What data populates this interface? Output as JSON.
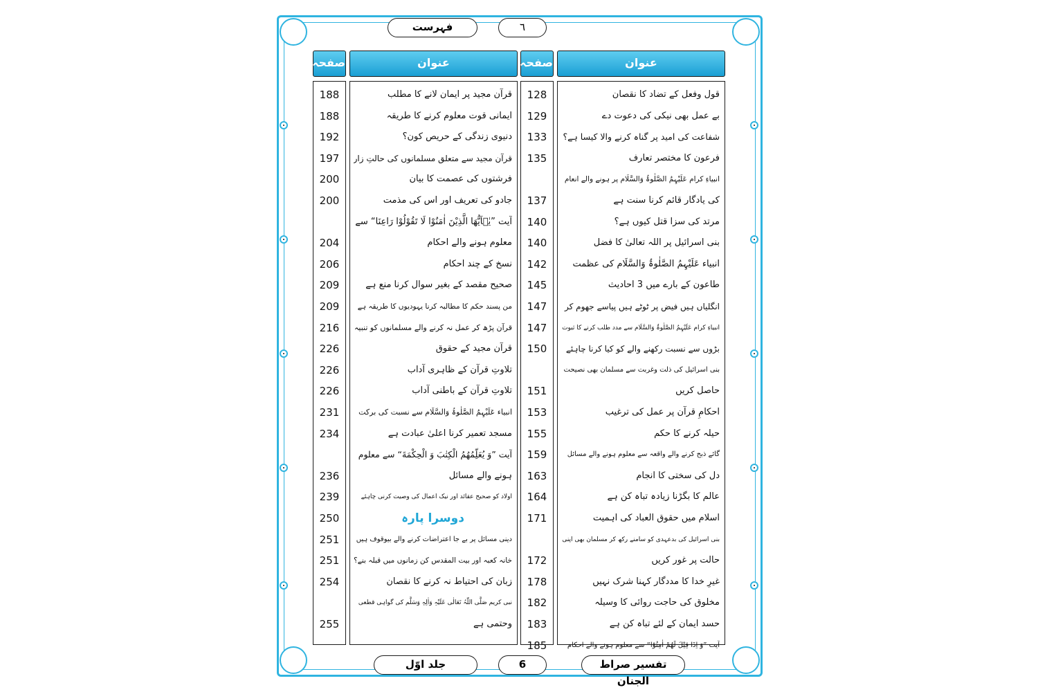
{
  "header": {
    "title": "فہرست",
    "page_number": "٦"
  },
  "columns": [
    {
      "heading_title": "عنوان",
      "heading_page": "صفحہ",
      "entries": [
        {
          "lines": [
            "قول وفعل کے تضاد کا نقصان"
          ],
          "page": 128
        },
        {
          "lines": [
            "بے عمل بھی نیکی کی دعوت دے"
          ],
          "page": 129
        },
        {
          "lines": [
            "شفاعت کی امید پر گناہ کرنے والا کیسا ہے؟"
          ],
          "page": 133
        },
        {
          "lines": [
            "فرعون کا مختصر تعارف"
          ],
          "page": 135
        },
        {
          "lines": [
            "انبیاءِ کرام عَلَیْہِمُ الصَّلٰوۃُ وَالسَّلَام پر ہونے والے انعام",
            "کی یادگار قائم کرنا سنت ہے"
          ],
          "page": 137
        },
        {
          "lines": [
            "مرتد کی سزا قتل کیوں ہے؟"
          ],
          "page": 140
        },
        {
          "lines": [
            "بنی اسرائیل پر اللہ تعالیٰ کا فضل"
          ],
          "page": 140
        },
        {
          "lines": [
            "انبیاء عَلَیْہِمُ الصَّلٰوۃُ وَالسَّلَام کی عظمت"
          ],
          "page": 142
        },
        {
          "lines": [
            "طاعون کے بارے میں 3 احادیث"
          ],
          "page": 145
        },
        {
          "lines": [
            "انگلیاں ہیں فیض پر ٹوٹے ہیں پیاسے جھوم کر"
          ],
          "page": 147
        },
        {
          "lines": [
            "انبیاءِ کرام عَلَیْہِمُ الصَّلٰوۃُ وَالسَّلَام سے مدد طلب کرنے کا ثبوت"
          ],
          "page": 147
        },
        {
          "lines": [
            "بڑوں سے نسبت رکھنے والے کو کیا کرنا چاہئے"
          ],
          "page": 150
        },
        {
          "lines": [
            "بنی اسرائیل کی ذلت وغربت سے مسلمان بھی نصیحت",
            "حاصل کریں"
          ],
          "page": 151
        },
        {
          "lines": [
            "احکامِ قرآن پر عمل کی ترغیب"
          ],
          "page": 153
        },
        {
          "lines": [
            "حیلہ کرنے کا حکم"
          ],
          "page": 155
        },
        {
          "lines": [
            "گائے ذبح کرنے والے واقعہ سے معلوم ہونے والے مسائل"
          ],
          "page": 159
        },
        {
          "lines": [
            "دل کی سختی کا انجام"
          ],
          "page": 163
        },
        {
          "lines": [
            "عالم کا بگڑنا زیادہ تباہ کن ہے"
          ],
          "page": 164
        },
        {
          "lines": [
            "اسلام میں حقوق العباد کی اہمیت"
          ],
          "page": 171
        },
        {
          "lines": [
            "بنی اسرائیل کی بدعہدی کو سامنے رکھ کر مسلمان بھی اپنی",
            "حالت پر غور کریں"
          ],
          "page": 172
        },
        {
          "lines": [
            "غیرِ خدا کا مددگار کہنا شرک نہیں"
          ],
          "page": 178
        },
        {
          "lines": [
            "مخلوق کی حاجت روائی کا وسیلہ"
          ],
          "page": 182
        },
        {
          "lines": [
            "حسد ایمان کے لئے تباہ کن ہے"
          ],
          "page": 183
        },
        {
          "lines": [
            "آیت ”وَ اِذَا قِیْلَ لَهُمْ اٰمِنُوْا“ سے معلوم ہونے والے احکام"
          ],
          "page": 185
        }
      ]
    },
    {
      "heading_title": "عنوان",
      "heading_page": "صفحہ",
      "entries": [
        {
          "lines": [
            "قرآن مجید پر ایمان لانے کا مطلب"
          ],
          "page": 188
        },
        {
          "lines": [
            "ایمانی قوت معلوم کرنے کا طریقہ"
          ],
          "page": 188
        },
        {
          "lines": [
            "دنیوی زندگی کے حریص کون؟"
          ],
          "page": 192
        },
        {
          "lines": [
            "قرآن مجید سے متعلق مسلمانوں کی حالتِ زار"
          ],
          "page": 197
        },
        {
          "lines": [
            "فرشتوں کی عصمت کا بیان"
          ],
          "page": 200
        },
        {
          "lines": [
            "جادو کی تعریف اور اس کی مذمت"
          ],
          "page": 200
        },
        {
          "lines": [
            "آیت ”یٰۤاَیُّهَا الَّذِیْنَ اٰمَنُوْا لَا تَقُوْلُوْا رَاعِنَا“ سے",
            "معلوم ہونے والے احکام"
          ],
          "page": 204
        },
        {
          "lines": [
            "نسخ کے چند احکام"
          ],
          "page": 206
        },
        {
          "lines": [
            "صحیح مقصد کے بغیر سوال کرنا منع ہے"
          ],
          "page": 209
        },
        {
          "lines": [
            "من پسند حکم کا مطالبہ کرنا یہودیوں کا طریقہ ہے"
          ],
          "page": 209
        },
        {
          "lines": [
            "قرآن پڑھ کر عمل نہ کرنے والے مسلمانوں کو تنبیہ"
          ],
          "page": 216
        },
        {
          "lines": [
            "قرآن مجید کے حقوق"
          ],
          "page": 226
        },
        {
          "lines": [
            "تلاوتِ قرآن کے ظاہری آداب"
          ],
          "page": 226
        },
        {
          "lines": [
            "تلاوتِ قرآن کے باطنی آداب"
          ],
          "page": 226
        },
        {
          "lines": [
            "انبیاء عَلَیْہِمُ الصَّلٰوۃُ وَالسَّلَام سے نسبت کی برکت"
          ],
          "page": 231
        },
        {
          "lines": [
            "مسجد تعمیر کرنا اعلیٰ عبادت ہے"
          ],
          "page": 234
        },
        {
          "lines": [
            "آیت ”وَ یُعَلِّمُهُمُ الْكِتٰبَ وَ الْحِكْمَةَ“ سے معلوم",
            "ہونے والے مسائل"
          ],
          "page": 236
        },
        {
          "lines": [
            "اولاد کو صحیح عقائد اور نیک اعمال کی وصیت کرنی چاہئے"
          ],
          "page": 239
        },
        {
          "lines": [
            "دوسرا پارہ"
          ],
          "page": 250,
          "heading": true
        },
        {
          "lines": [
            "دینی مسائل پر بے جا اعتراضات کرنے والے بیوقوف ہیں"
          ],
          "page": 251
        },
        {
          "lines": [
            "خانہ کعبہ اور بیت المقدس کن زمانوں میں قبلہ بنے؟"
          ],
          "page": 251
        },
        {
          "lines": [
            "زبان کی احتیاط نہ کرنے کا نقصان"
          ],
          "page": 254
        },
        {
          "lines": [
            "نبی کریم صَلَّی اللّٰہُ تَعَالٰی عَلَیْہِ وَاٰلِہٖ وَسَلَّم کی گواہی قطعی",
            "وحتمی ہے"
          ],
          "page": 255
        }
      ]
    }
  ],
  "footer": {
    "book_title": "تفسیر صراط الجنان",
    "page_number": "6",
    "volume": "جلد اوّل"
  }
}
